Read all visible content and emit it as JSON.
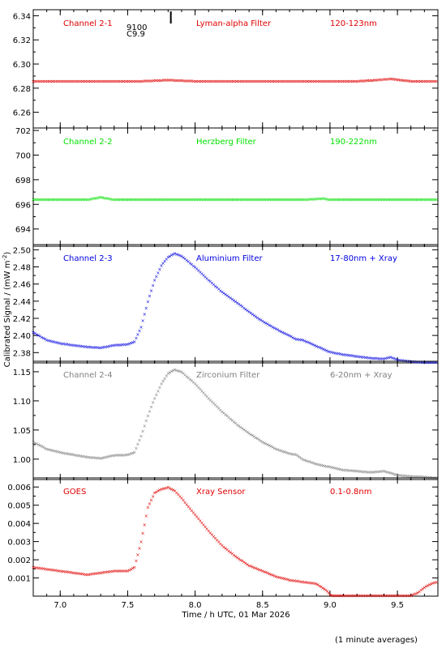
{
  "figure": {
    "ylabel_html": "Calibrated Signal / (mW m",
    "ylabel_sup": "-2",
    "ylabel_end": ")",
    "xlabel": "Time / h UTC, 01 Mar 2026",
    "footnote": "(1 minute averages)",
    "event_marker": {
      "x": 7.82,
      "label_top": "9100",
      "label_bottom": "C9.9"
    }
  },
  "chart_data": [
    {
      "type": "scatter",
      "labels": [
        "Channel 2-1",
        "Lyman-alpha Filter",
        "120-123nm"
      ],
      "color": "#e00000",
      "xlim": [
        6.8,
        9.8
      ],
      "ylim": [
        6.247,
        6.345
      ],
      "yticks": [
        "6.26",
        "6.28",
        "6.30",
        "6.32",
        "6.34"
      ],
      "ytick_values": [
        6.26,
        6.28,
        6.3,
        6.32,
        6.34
      ],
      "x": [
        6.8,
        7.0,
        7.2,
        7.4,
        7.6,
        7.8,
        8.0,
        8.2,
        8.4,
        8.6,
        8.8,
        9.0,
        9.2,
        9.35,
        9.45,
        9.6,
        9.8
      ],
      "y": [
        6.286,
        6.286,
        6.286,
        6.286,
        6.286,
        6.287,
        6.286,
        6.286,
        6.286,
        6.286,
        6.286,
        6.286,
        6.286,
        6.287,
        6.288,
        6.286,
        6.286
      ]
    },
    {
      "type": "scatter",
      "labels": [
        "Channel 2-2",
        "Herzberg Filter",
        "190-222nm"
      ],
      "color": "#00e000",
      "xlim": [
        6.8,
        9.8
      ],
      "ylim": [
        692.6,
        702.2
      ],
      "yticks": [
        "694",
        "696",
        "698",
        "700",
        "702"
      ],
      "ytick_values": [
        694,
        696,
        698,
        700,
        702
      ],
      "x": [
        6.8,
        7.0,
        7.2,
        7.3,
        7.4,
        7.6,
        7.8,
        8.0,
        8.2,
        8.4,
        8.6,
        8.8,
        8.95,
        9.0,
        9.2,
        9.4,
        9.6,
        9.8
      ],
      "y": [
        696.4,
        696.4,
        696.4,
        696.6,
        696.4,
        696.4,
        696.4,
        696.4,
        696.4,
        696.4,
        696.4,
        696.4,
        696.5,
        696.4,
        696.4,
        696.4,
        696.4,
        696.4
      ]
    },
    {
      "type": "scatter",
      "labels": [
        "Channel 2-3",
        "Aluminium Filter",
        "17-80nm + Xray"
      ],
      "color": "#0000e0",
      "xlim": [
        6.8,
        9.8
      ],
      "ylim": [
        2.368,
        2.506
      ],
      "yticks": [
        "2.38",
        "2.40",
        "2.42",
        "2.44",
        "2.46",
        "2.48",
        "2.50"
      ],
      "ytick_values": [
        2.38,
        2.4,
        2.42,
        2.44,
        2.46,
        2.48,
        2.5
      ],
      "x": [
        6.8,
        6.9,
        7.0,
        7.1,
        7.2,
        7.3,
        7.4,
        7.5,
        7.55,
        7.6,
        7.65,
        7.7,
        7.75,
        7.8,
        7.85,
        7.9,
        8.0,
        8.1,
        8.2,
        8.3,
        8.4,
        8.5,
        8.6,
        8.7,
        8.75,
        8.8,
        8.9,
        9.0,
        9.1,
        9.2,
        9.3,
        9.4,
        9.45,
        9.5,
        9.6,
        9.7,
        9.8
      ],
      "y": [
        2.404,
        2.395,
        2.391,
        2.389,
        2.387,
        2.386,
        2.389,
        2.39,
        2.393,
        2.41,
        2.44,
        2.465,
        2.482,
        2.492,
        2.496,
        2.493,
        2.48,
        2.465,
        2.451,
        2.44,
        2.428,
        2.417,
        2.408,
        2.4,
        2.396,
        2.395,
        2.388,
        2.381,
        2.378,
        2.376,
        2.374,
        2.373,
        2.375,
        2.372,
        2.37,
        2.369,
        2.369
      ]
    },
    {
      "type": "scatter",
      "labels": [
        "Channel 2-4",
        "Zirconium Filter",
        "6-20nm + Xray"
      ],
      "color": "#808080",
      "xlim": [
        6.8,
        9.8
      ],
      "ylim": [
        0.965,
        1.168
      ],
      "yticks": [
        "1.00",
        "1.05",
        "1.10",
        "1.15"
      ],
      "ytick_values": [
        1.0,
        1.05,
        1.1,
        1.15
      ],
      "x": [
        6.8,
        6.9,
        7.0,
        7.1,
        7.2,
        7.3,
        7.4,
        7.5,
        7.55,
        7.6,
        7.65,
        7.7,
        7.75,
        7.8,
        7.85,
        7.9,
        8.0,
        8.1,
        8.2,
        8.3,
        8.4,
        8.5,
        8.6,
        8.7,
        8.75,
        8.8,
        8.9,
        9.0,
        9.1,
        9.2,
        9.3,
        9.4,
        9.45,
        9.5,
        9.6,
        9.7,
        9.8
      ],
      "y": [
        1.03,
        1.018,
        1.012,
        1.008,
        1.004,
        1.002,
        1.007,
        1.008,
        1.012,
        1.04,
        1.075,
        1.105,
        1.13,
        1.148,
        1.154,
        1.15,
        1.13,
        1.105,
        1.082,
        1.062,
        1.045,
        1.03,
        1.018,
        1.01,
        1.008,
        1.0,
        0.992,
        0.987,
        0.982,
        0.98,
        0.978,
        0.98,
        0.977,
        0.973,
        0.971,
        0.97,
        0.968
      ]
    },
    {
      "type": "scatter",
      "labels": [
        "GOES",
        "Xray Sensor",
        "0.1-0.8nm"
      ],
      "color": "#e00000",
      "xlim": [
        6.8,
        9.8
      ],
      "ylim": [
        0.0,
        0.0065
      ],
      "yticks": [
        "0.001",
        "0.002",
        "0.003",
        "0.004",
        "0.005",
        "0.006"
      ],
      "ytick_values": [
        0.001,
        0.002,
        0.003,
        0.004,
        0.005,
        0.006
      ],
      "x": [
        6.8,
        6.9,
        7.0,
        7.1,
        7.2,
        7.3,
        7.4,
        7.5,
        7.55,
        7.6,
        7.65,
        7.7,
        7.75,
        7.8,
        7.85,
        7.9,
        8.0,
        8.1,
        8.2,
        8.3,
        8.4,
        8.5,
        8.6,
        8.7,
        8.8,
        8.9,
        8.98,
        9.0,
        9.02,
        9.1,
        9.2,
        9.3,
        9.4,
        9.5,
        9.6,
        9.65,
        9.7,
        9.75,
        9.8
      ],
      "y": [
        0.0016,
        0.0015,
        0.0014,
        0.0013,
        0.0012,
        0.0013,
        0.0014,
        0.0014,
        0.0016,
        0.003,
        0.0049,
        0.0057,
        0.0059,
        0.006,
        0.0058,
        0.0054,
        0.0045,
        0.0036,
        0.0028,
        0.0022,
        0.0017,
        0.0014,
        0.0011,
        0.0009,
        0.0008,
        0.0007,
        0.0003,
        0.0001,
        5e-05,
        5e-05,
        5e-05,
        5e-05,
        5e-05,
        5e-05,
        5e-05,
        0.0002,
        0.0005,
        0.0007,
        0.0008
      ]
    }
  ],
  "x_axis": {
    "ticks": [
      "7.0",
      "7.5",
      "8.0",
      "8.5",
      "9.0",
      "9.5"
    ],
    "tick_values": [
      7.0,
      7.5,
      8.0,
      8.5,
      9.0,
      9.5
    ]
  }
}
